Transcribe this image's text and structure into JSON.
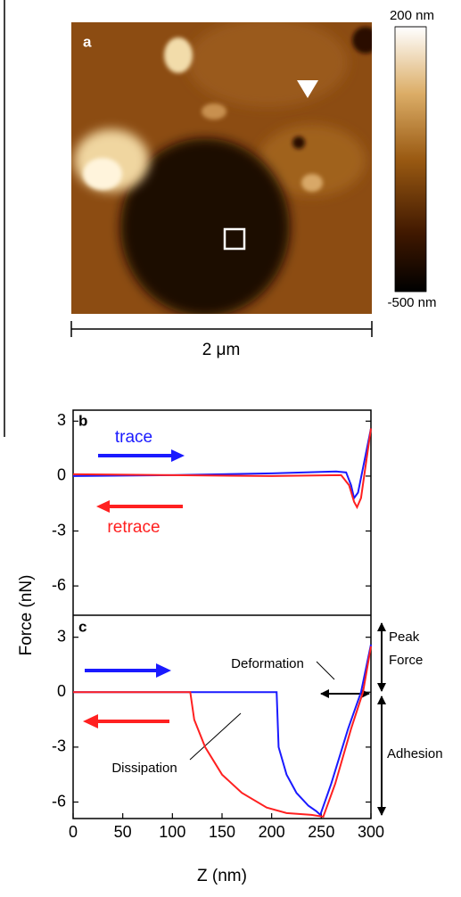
{
  "chart_data": [
    {
      "type": "image",
      "label": "a",
      "clim": [
        -500,
        200
      ],
      "cticks": [
        {
          "value": 200,
          "label": "200 nm"
        },
        {
          "value": -500,
          "label": "-500 nm"
        }
      ],
      "scale_bar": "2 μm"
    },
    {
      "type": "line",
      "label": "b",
      "ylabel": "Force (nN)",
      "xlim": [
        0,
        300
      ],
      "ylim": [
        -7.6,
        3.6
      ],
      "yticks": [
        3,
        0,
        -3,
        -6
      ],
      "series": [
        {
          "name": "trace",
          "color": "#1a1aff",
          "x": [
            0,
            100,
            200,
            265,
            275,
            280,
            283,
            287,
            300
          ],
          "values": [
            0,
            0.05,
            0.15,
            0.25,
            0.2,
            -0.5,
            -1.2,
            -0.9,
            2.6
          ]
        },
        {
          "name": "retrace",
          "color": "#ff2020",
          "x": [
            0,
            100,
            200,
            270,
            278,
            283,
            286,
            290,
            300
          ],
          "values": [
            0.1,
            0.05,
            0,
            0.05,
            -0.5,
            -1.4,
            -1.7,
            -1.2,
            2.6
          ]
        }
      ]
    },
    {
      "type": "line",
      "label": "c",
      "xlabel": "Z (nm)",
      "xlim": [
        0,
        300
      ],
      "ylim": [
        -6.9,
        4.2
      ],
      "yticks": [
        3,
        0,
        -3,
        -6
      ],
      "xticks": [
        0,
        50,
        100,
        150,
        200,
        250,
        300
      ],
      "series": [
        {
          "color": "#1a1aff",
          "x": [
            0,
            100,
            205,
            207,
            215,
            225,
            237,
            245,
            249,
            260,
            277,
            290,
            300
          ],
          "values": [
            0,
            0,
            0,
            -3,
            -4.5,
            -5.5,
            -6.2,
            -6.5,
            -6.7,
            -5,
            -2,
            0,
            2.6
          ]
        },
        {
          "color": "#ff2020",
          "x": [
            0,
            100,
            118,
            122,
            133,
            150,
            170,
            195,
            215,
            240,
            252,
            264,
            280,
            292,
            300
          ],
          "values": [
            0,
            0,
            0,
            -1.5,
            -3,
            -4.5,
            -5.5,
            -6.3,
            -6.6,
            -6.7,
            -6.8,
            -5,
            -2,
            0,
            2.5
          ]
        }
      ],
      "annotations": [
        "Deformation",
        "Peak Force",
        "Adhesion",
        "Dissipation"
      ]
    }
  ]
}
